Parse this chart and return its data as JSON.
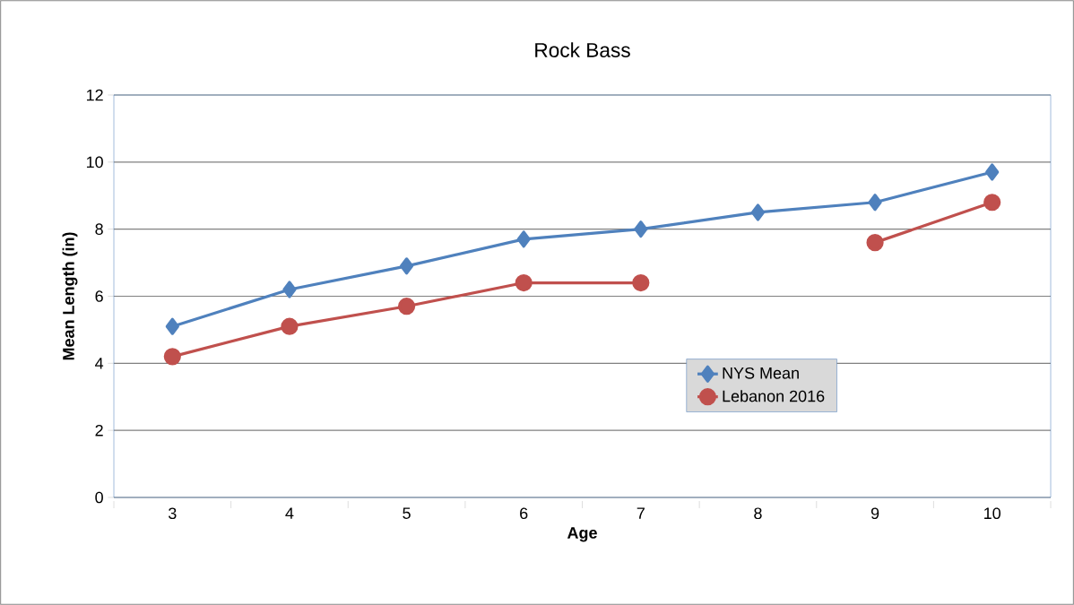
{
  "chart_data": {
    "type": "line",
    "title": "Rock Bass",
    "xlabel": "Age",
    "ylabel": "Mean Length (in)",
    "categories": [
      "3",
      "4",
      "5",
      "6",
      "7",
      "8",
      "9",
      "10"
    ],
    "series": [
      {
        "name": "NYS Mean",
        "color": "#4f81bd",
        "marker": "diamond",
        "values": [
          5.1,
          6.2,
          6.9,
          7.7,
          8.0,
          8.5,
          8.8,
          9.7
        ]
      },
      {
        "name": "Lebanon 2016",
        "color": "#c0504d",
        "marker": "circle",
        "values": [
          4.2,
          5.1,
          5.7,
          6.4,
          6.4,
          null,
          7.6,
          8.8
        ]
      }
    ],
    "ylim": [
      0,
      12
    ],
    "yticks": [
      0,
      2,
      4,
      6,
      8,
      10,
      12
    ],
    "grid": "y",
    "legend": "right"
  }
}
